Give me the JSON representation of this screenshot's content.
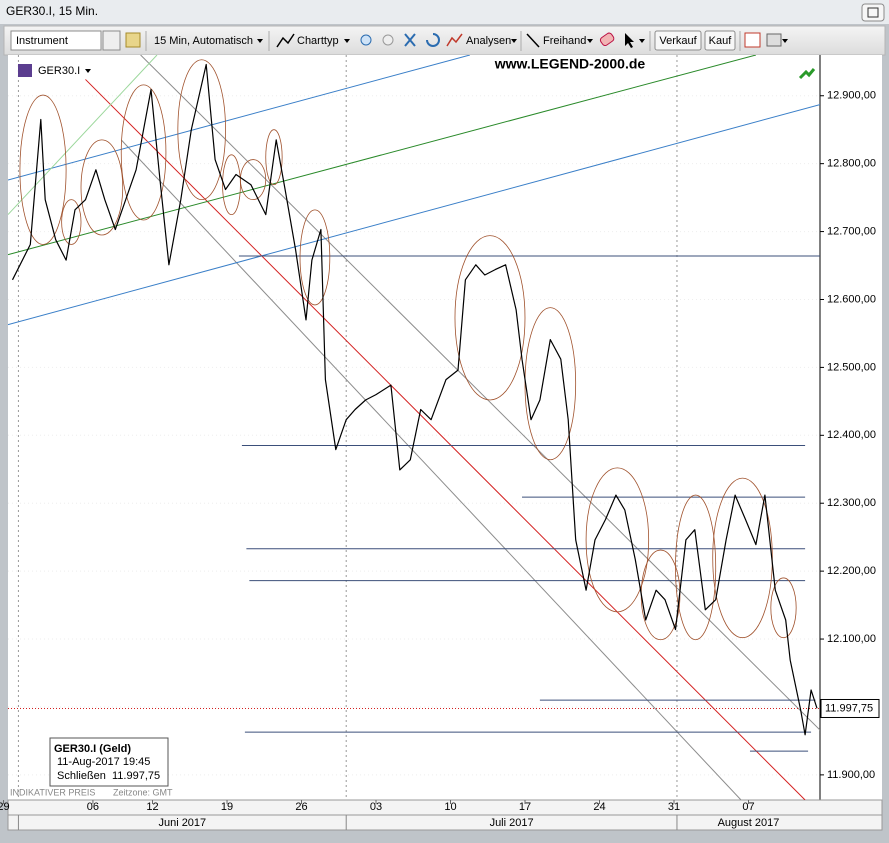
{
  "window": {
    "title": "GER30.I, 15 Min."
  },
  "toolbar": {
    "instrument": "Instrument",
    "timeframe": "15 Min, Automatisch",
    "chart_type": "Charttyp",
    "analyses": "Analysen",
    "freehand": "Freihand",
    "sell": "Verkauf",
    "buy": "Kauf"
  },
  "chart_data": {
    "type": "line",
    "symbol": "GER30.I",
    "watermark": "www.LEGEND-2000.de",
    "color": "#000000",
    "x": [
      0.6,
      1.8,
      2.5,
      2.8,
      3.5,
      4.2,
      4.8,
      5.5,
      6.2,
      6.8,
      7.5,
      8.2,
      8.9,
      9.9,
      10.5,
      11.1,
      11.9,
      12.6,
      13.6,
      14.2,
      14.9,
      15.6,
      16.6,
      17.6,
      18.3,
      18.9,
      19.6,
      20.3,
      20.7,
      21.3,
      21.6,
      22.3,
      23.0,
      23.6,
      24.3,
      25.0,
      26.0,
      26.6,
      27.3,
      28.0,
      28.7,
      29.7,
      30.5,
      31.0,
      31.7,
      32.3,
      33.0,
      33.7,
      34.4,
      34.8,
      35.4,
      36.0,
      36.7,
      37.4,
      37.9,
      38.4,
      39.1,
      39.7,
      40.4,
      41.1,
      41.7,
      42.4,
      43.1,
      43.8,
      44.4,
      45.1,
      45.8,
      46.4,
      47.1,
      47.8,
      48.5,
      49.1,
      49.8,
      50.5,
      51.1,
      51.8,
      52.5,
      52.8,
      53.5,
      53.8,
      54.2,
      54.6
    ],
    "values": [
      12629,
      12681,
      12865,
      12747,
      12688,
      12658,
      12732,
      12747,
      12791,
      12747,
      12703,
      12747,
      12791,
      12909,
      12776,
      12651,
      12747,
      12850,
      12946,
      12806,
      12762,
      12784,
      12769,
      12725,
      12835,
      12762,
      12673,
      12570,
      12658,
      12703,
      12482,
      12379,
      12423,
      12438,
      12452,
      12460,
      12474,
      12349,
      12364,
      12438,
      12423,
      12482,
      12496,
      12629,
      12651,
      12636,
      12644,
      12651,
      12585,
      12512,
      12423,
      12452,
      12541,
      12512,
      12423,
      12246,
      12172,
      12246,
      12276,
      12312,
      12290,
      12217,
      12128,
      12172,
      12158,
      12114,
      12246,
      12261,
      12143,
      12158,
      12246,
      12312,
      12276,
      12239,
      12312,
      12172,
      12128,
      12069,
      11996,
      11959,
      12025,
      11998
    ],
    "xlim": [
      0.3,
      54.8
    ],
    "ylim": [
      11863,
      12960
    ],
    "xticks": [
      {
        "value": 0,
        "label": "29"
      },
      {
        "value": 6,
        "label": "06"
      },
      {
        "value": 10,
        "label": "12"
      },
      {
        "value": 15,
        "label": "19"
      },
      {
        "value": 20,
        "label": "26"
      },
      {
        "value": 25,
        "label": "03"
      },
      {
        "value": 30,
        "label": "10"
      },
      {
        "value": 35,
        "label": "17"
      },
      {
        "value": 40,
        "label": "24"
      },
      {
        "value": 45,
        "label": "31"
      },
      {
        "value": 50,
        "label": "07"
      }
    ],
    "yticks": [
      {
        "value": 11900,
        "label": "11.900,00"
      },
      {
        "value": 12000,
        "label": "12.000,00"
      },
      {
        "value": 12100,
        "label": "12.100,00"
      },
      {
        "value": 12200,
        "label": "12.200,00"
      },
      {
        "value": 12300,
        "label": "12.300,00"
      },
      {
        "value": 12400,
        "label": "12.400,00"
      },
      {
        "value": 12500,
        "label": "12.500,00"
      },
      {
        "value": 12600,
        "label": "12.600,00"
      },
      {
        "value": 12700,
        "label": "12.700,00"
      },
      {
        "value": 12800,
        "label": "12.800,00"
      },
      {
        "value": 12900,
        "label": "12.900,00"
      }
    ],
    "months": [
      {
        "label": "Juni 2017",
        "start": 1.0,
        "end": 23.0
      },
      {
        "label": "Juli 2017",
        "start": 23.0,
        "end": 45.2
      },
      {
        "label": "August 2017",
        "start": 45.2,
        "end": 54.8
      }
    ],
    "last_price": {
      "value": 11997.75,
      "label": "11.997,75"
    },
    "levels": [
      {
        "y": 12664,
        "x": [
          15.8,
          54.8
        ]
      },
      {
        "y": 12385,
        "x": [
          16.0,
          53.8
        ]
      },
      {
        "y": 12309,
        "x": [
          34.8,
          53.8
        ]
      },
      {
        "y": 12233,
        "x": [
          16.3,
          53.8
        ]
      },
      {
        "y": 12186,
        "x": [
          16.5,
          53.8
        ]
      },
      {
        "y": 12010,
        "x": [
          36.0,
          54.5
        ]
      },
      {
        "y": 11963,
        "x": [
          16.2,
          54.2
        ]
      },
      {
        "y": 11935,
        "x": [
          50.1,
          54.0
        ]
      }
    ],
    "level_color": "#3b4f7a",
    "trendlines": [
      {
        "x": [
          5.5,
          53.8
        ],
        "y": [
          12924,
          11863
        ],
        "color": "#d42020"
      },
      {
        "x": [
          9.2,
          54.8
        ],
        "y": [
          12960,
          11966
        ],
        "color": "#8c8c8c"
      },
      {
        "x": [
          7.9,
          49.5
        ],
        "y": [
          12835,
          11863
        ],
        "color": "#8c8c8c"
      },
      {
        "x": [
          0.3,
          31.3
        ],
        "y": [
          12776,
          12960
        ],
        "color": "#3a7fc8"
      },
      {
        "x": [
          0.3,
          54.8
        ],
        "y": [
          12563,
          12887
        ],
        "color": "#3a7fc8"
      },
      {
        "x": [
          0.3,
          50.5
        ],
        "y": [
          12666,
          12960
        ],
        "color": "#2a8a2a"
      },
      {
        "x": [
          0.3,
          10.3
        ],
        "y": [
          12725,
          12960
        ],
        "color": "#9bd79b"
      }
    ],
    "highlights": [
      {
        "x": [
          1.1,
          4.2
        ],
        "y": [
          12681,
          12901
        ]
      },
      {
        "x": [
          3.9,
          5.2
        ],
        "y": [
          12681,
          12747
        ]
      },
      {
        "x": [
          5.2,
          8.0
        ],
        "y": [
          12695,
          12835
        ]
      },
      {
        "x": [
          7.9,
          10.9
        ],
        "y": [
          12717,
          12916
        ]
      },
      {
        "x": [
          11.7,
          14.9
        ],
        "y": [
          12747,
          12953
        ]
      },
      {
        "x": [
          14.7,
          15.9
        ],
        "y": [
          12725,
          12813
        ]
      },
      {
        "x": [
          15.9,
          17.6
        ],
        "y": [
          12747,
          12806
        ]
      },
      {
        "x": [
          17.6,
          18.7
        ],
        "y": [
          12769,
          12850
        ]
      },
      {
        "x": [
          19.9,
          21.9
        ],
        "y": [
          12592,
          12732
        ]
      },
      {
        "x": [
          30.3,
          35.0
        ],
        "y": [
          12452,
          12694
        ]
      },
      {
        "x": [
          35.0,
          38.4
        ],
        "y": [
          12364,
          12588
        ]
      },
      {
        "x": [
          39.1,
          43.3
        ],
        "y": [
          12140,
          12352
        ]
      },
      {
        "x": [
          42.8,
          45.4
        ],
        "y": [
          12099,
          12231
        ]
      },
      {
        "x": [
          45.1,
          47.8
        ],
        "y": [
          12099,
          12312
        ]
      },
      {
        "x": [
          47.6,
          51.6
        ],
        "y": [
          12102,
          12337
        ]
      },
      {
        "x": [
          51.5,
          53.2
        ],
        "y": [
          12102,
          12190
        ]
      }
    ],
    "highlight_color": "#a0522d",
    "info": {
      "title": "GER30.I (Geld)",
      "datetime": "11-Aug-2017 19:45",
      "close_label": "Schließen",
      "close_value": "11.997,75"
    },
    "footer": {
      "price_note": "INDIKATIVER PREIS",
      "timezone": "Zeitzone: GMT"
    }
  }
}
